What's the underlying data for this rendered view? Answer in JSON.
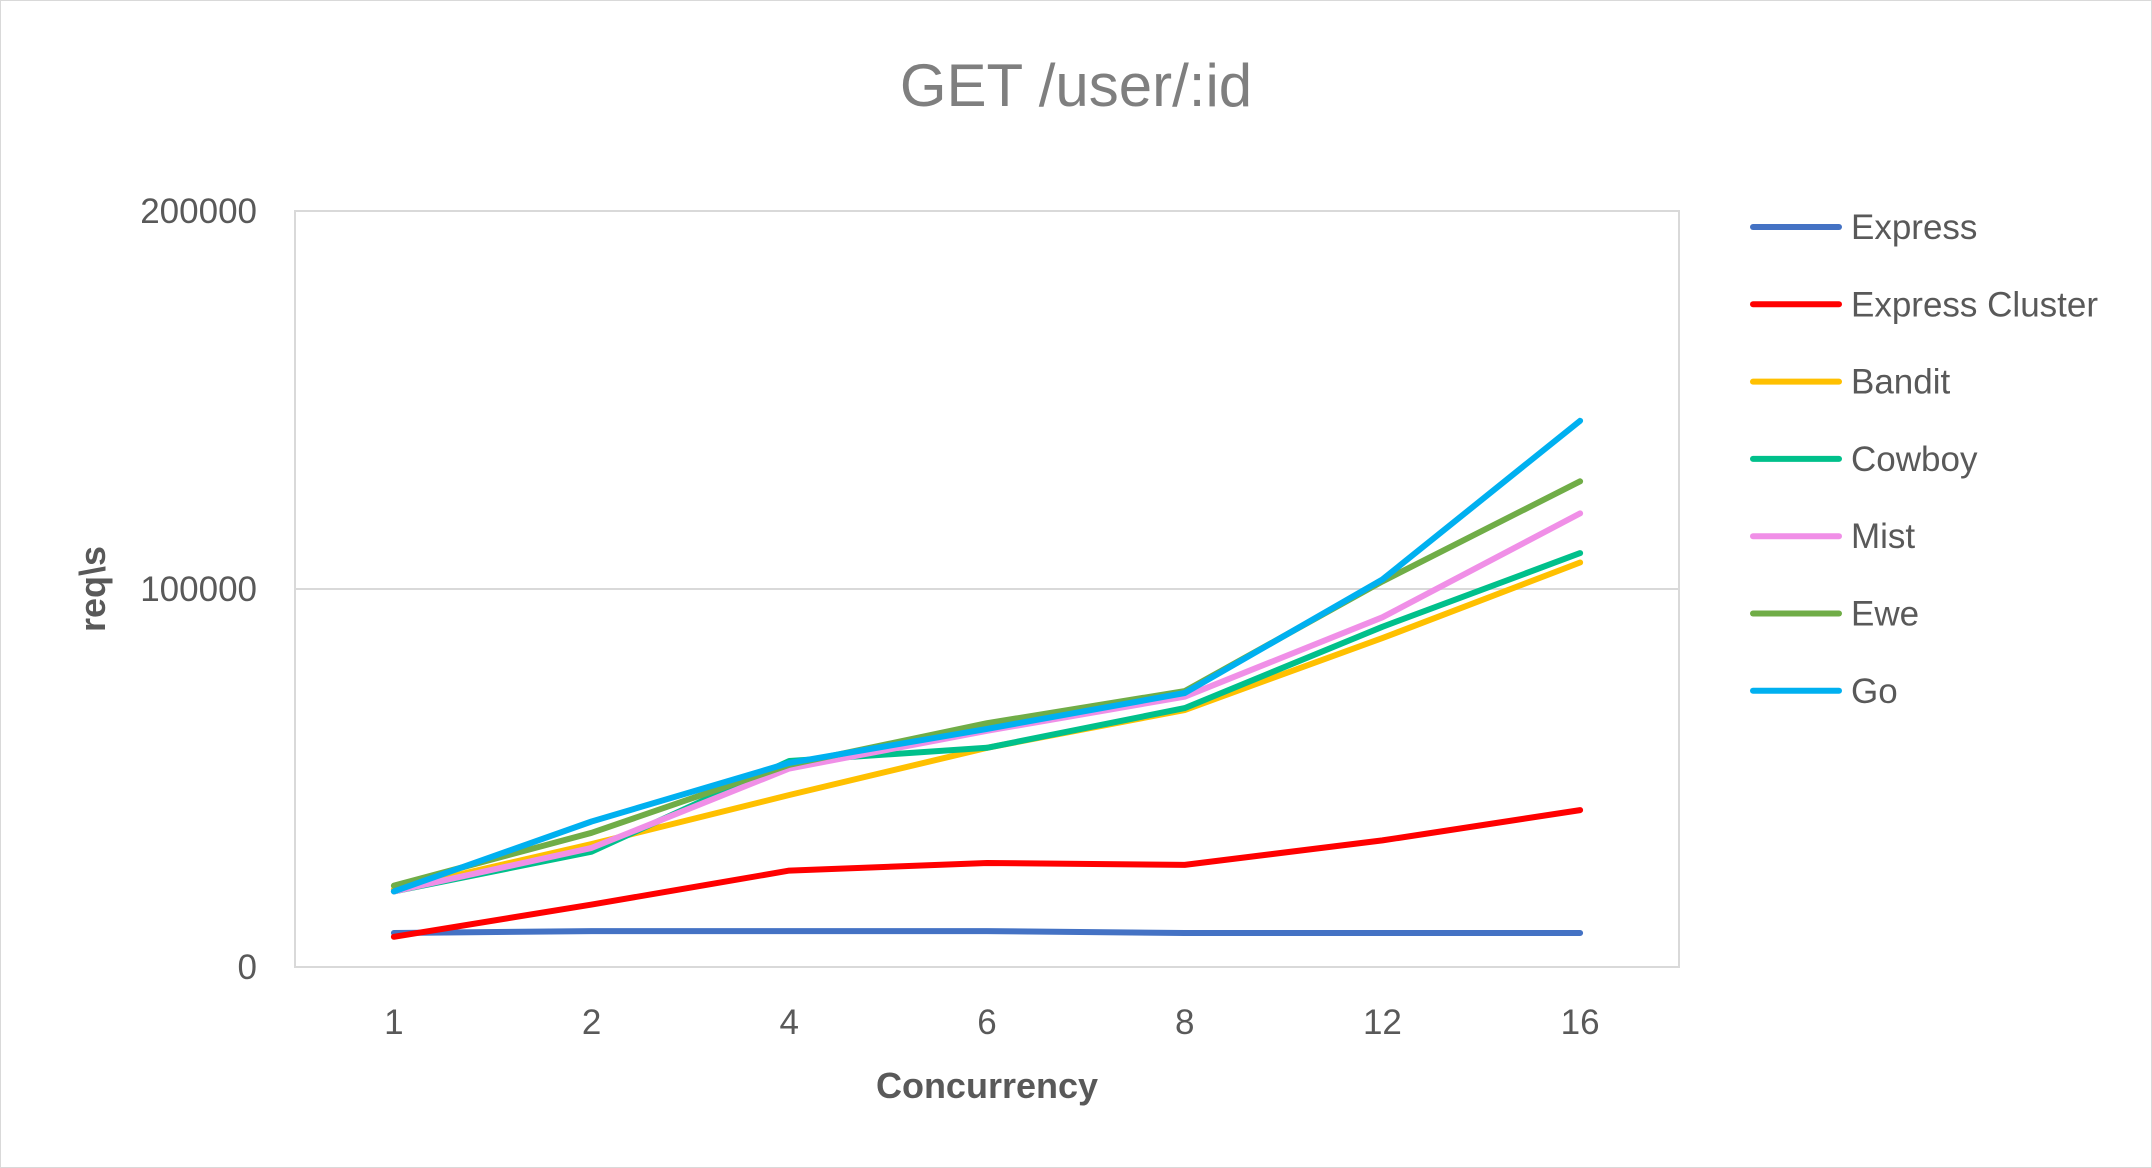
{
  "chart_data": {
    "type": "line",
    "title": "GET /user/:id",
    "xlabel": "Concurrency",
    "ylabel": "req\\s",
    "categories": [
      "1",
      "2",
      "4",
      "6",
      "8",
      "12",
      "16"
    ],
    "ylim": [
      0,
      200000
    ],
    "yticks": [
      "0",
      "100000",
      "200000"
    ],
    "grid": "horizontal",
    "legend_position": "right",
    "series": [
      {
        "name": "Express",
        "color": "#4472c4",
        "values": [
          9000,
          9500,
          9500,
          9500,
          9000,
          9000,
          9000
        ]
      },
      {
        "name": "Express Cluster",
        "color": "#ff0000",
        "values": [
          8000,
          16500,
          25500,
          27500,
          27000,
          33500,
          41500
        ]
      },
      {
        "name": "Bandit",
        "color": "#ffc000",
        "values": [
          20500,
          32500,
          45500,
          58000,
          68000,
          87000,
          107000
        ]
      },
      {
        "name": "Cowboy",
        "color": "#00c08b",
        "values": [
          20000,
          30500,
          54500,
          58000,
          68500,
          90000,
          109500
        ]
      },
      {
        "name": "Mist",
        "color": "#f08fe7",
        "values": [
          20000,
          31500,
          52500,
          62500,
          71500,
          92500,
          120000
        ]
      },
      {
        "name": "Ewe",
        "color": "#70ad47",
        "values": [
          21500,
          35500,
          53500,
          64500,
          73000,
          102000,
          128500
        ]
      },
      {
        "name": "Go",
        "color": "#00b0f0",
        "values": [
          20000,
          38500,
          54000,
          63000,
          72500,
          102500,
          144500
        ]
      }
    ]
  }
}
